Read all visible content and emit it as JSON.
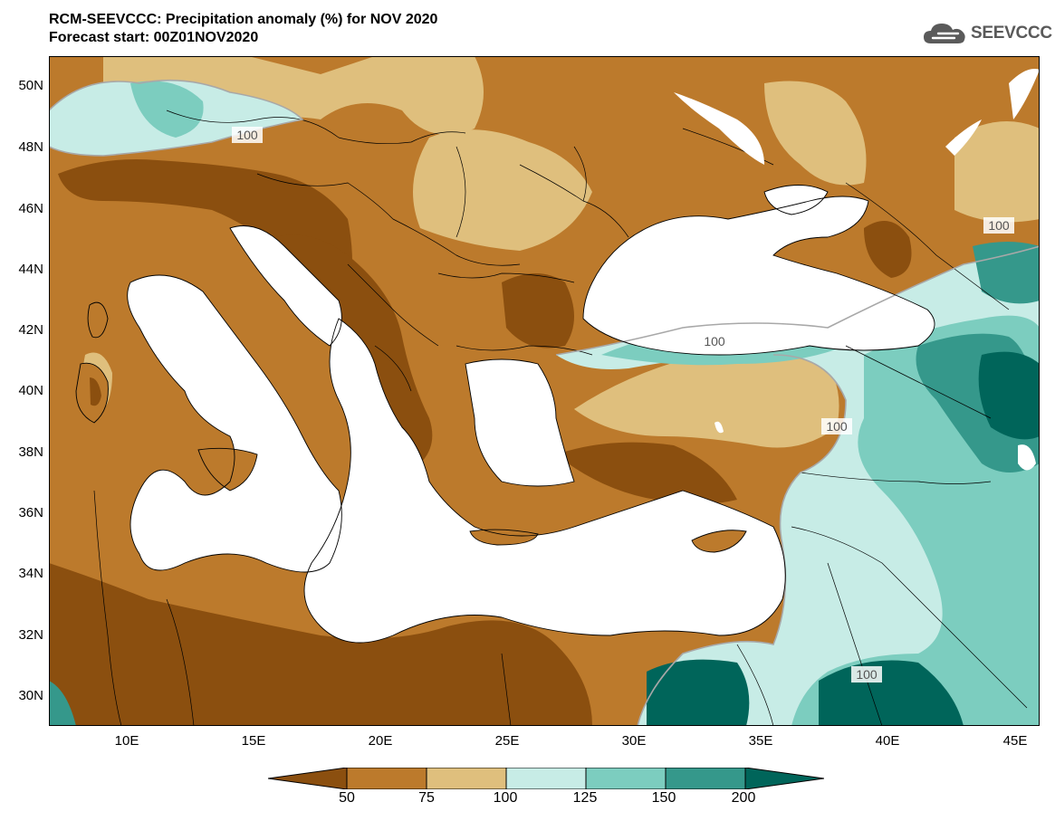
{
  "title": {
    "line1": "RCM-SEEVCCC: Precipitation anomaly (%) for NOV 2020",
    "line2": "Forecast start: 00Z01NOV2020"
  },
  "logo": {
    "text": "SEEVCCC",
    "icon": "cloud-icon"
  },
  "map": {
    "lat_labels": [
      "50N",
      "48N",
      "46N",
      "44N",
      "42N",
      "40N",
      "38N",
      "36N",
      "34N",
      "32N",
      "30N"
    ],
    "lon_labels": [
      "10E",
      "15E",
      "20E",
      "25E",
      "30E",
      "35E",
      "40E",
      "45E"
    ],
    "contour_labels": [
      "100",
      "100",
      "100",
      "100",
      "100"
    ],
    "colors": {
      "below50": "#8b4f0f",
      "50_75": "#bc7a2c",
      "75_100": "#dfbf7d",
      "100_125": "#c7ece6",
      "125_150": "#7ccdbf",
      "150_200": "#35988b",
      "above200": "#00655a",
      "sea": "#ffffff",
      "contour_100": "#a8a8a8"
    }
  },
  "colorbar": {
    "labels": [
      "50",
      "75",
      "100",
      "125",
      "150",
      "200"
    ],
    "colors": [
      "#8b4f0f",
      "#bc7a2c",
      "#dfbf7d",
      "#c7ece6",
      "#7ccdbf",
      "#35988b",
      "#00655a"
    ]
  }
}
